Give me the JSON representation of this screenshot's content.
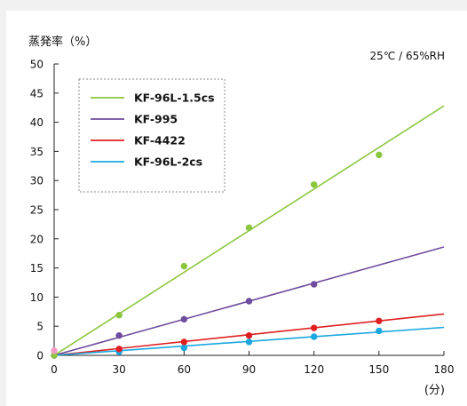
{
  "chart_data": {
    "type": "scatter",
    "ylabel": "蒸発率（%）",
    "xlabel": "(分)",
    "annotation": "25℃ / 65%RH",
    "x_ticks": [
      "0",
      "30",
      "60",
      "90",
      "120",
      "150",
      "180"
    ],
    "y_ticks": [
      "0",
      "5",
      "10",
      "15",
      "20",
      "25",
      "30",
      "35",
      "40",
      "45",
      "50"
    ],
    "xlim": [
      0,
      180
    ],
    "ylim": [
      0,
      50
    ],
    "grid": false,
    "legend_position": "top-left",
    "series": [
      {
        "name": "KF-96L-1.5cs",
        "color": "#8cc63f",
        "x": [
          0,
          30,
          60,
          90,
          120,
          150
        ],
        "y": [
          0,
          6.9,
          15.3,
          21.9,
          29.3,
          34.4
        ],
        "fit_end": [
          180,
          42.8
        ]
      },
      {
        "name": "KF-995",
        "color": "#6e4c9e",
        "x": [
          0,
          30,
          60,
          90,
          120
        ],
        "y": [
          0,
          3.4,
          6.2,
          9.3,
          12.2
        ],
        "fit_end": [
          180,
          18.6
        ]
      },
      {
        "name": "KF-4422",
        "color": "#e02020",
        "x": [
          0,
          30,
          60,
          90,
          120,
          150
        ],
        "y": [
          0,
          1.1,
          2.3,
          3.4,
          4.7,
          5.9
        ],
        "fit_end": [
          180,
          7.1
        ]
      },
      {
        "name": "KF-96L-2cs",
        "color": "#1aa7e0",
        "x": [
          0,
          30,
          60,
          90,
          120,
          150
        ],
        "y": [
          0,
          0.6,
          1.3,
          2.3,
          3.2,
          4.2
        ],
        "fit_end": [
          180,
          4.8
        ]
      }
    ]
  }
}
